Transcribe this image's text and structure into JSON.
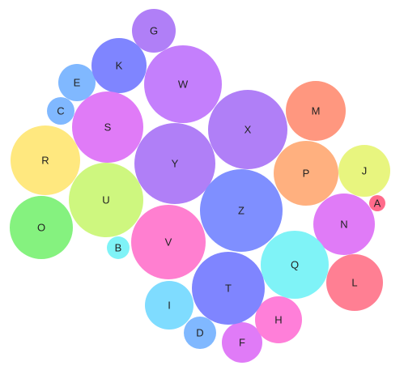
{
  "chart_data": {
    "type": "bubble",
    "title": "",
    "grid": false,
    "legend": "none",
    "bubbles": [
      {
        "label": "A",
        "value": 1,
        "color": "#ff6b8b"
      },
      {
        "label": "B",
        "value": 1,
        "color": "#7ff3f7"
      },
      {
        "label": "C",
        "value": 2,
        "color": "#80b8ff"
      },
      {
        "label": "D",
        "value": 3,
        "color": "#80b8ff"
      },
      {
        "label": "E",
        "value": 4,
        "color": "#80b8ff"
      },
      {
        "label": "F",
        "value": 4,
        "color": "#e07bf7"
      },
      {
        "label": "G",
        "value": 5,
        "color": "#b07ff7"
      },
      {
        "label": "H",
        "value": 6,
        "color": "#ff7fd9"
      },
      {
        "label": "I",
        "value": 7,
        "color": "#7fdcff"
      },
      {
        "label": "J",
        "value": 8,
        "color": "#e8f57f"
      },
      {
        "label": "K",
        "value": 9,
        "color": "#7f85ff"
      },
      {
        "label": "L",
        "value": 9,
        "color": "#ff7f93"
      },
      {
        "label": "M",
        "value": 10,
        "color": "#ff977f"
      },
      {
        "label": "N",
        "value": 11,
        "color": "#e07bf7"
      },
      {
        "label": "O",
        "value": 11,
        "color": "#85f27f"
      },
      {
        "label": "P",
        "value": 12,
        "color": "#ffb07f"
      },
      {
        "label": "Q",
        "value": 13,
        "color": "#7ff3f7"
      },
      {
        "label": "R",
        "value": 13,
        "color": "#ffe87f"
      },
      {
        "label": "S",
        "value": 14,
        "color": "#e07bf7"
      },
      {
        "label": "T",
        "value": 15,
        "color": "#7f85ff"
      },
      {
        "label": "U",
        "value": 16,
        "color": "#cef77f"
      },
      {
        "label": "V",
        "value": 16,
        "color": "#ff7fd0"
      },
      {
        "label": "W",
        "value": 17,
        "color": "#c47ffc"
      },
      {
        "label": "X",
        "value": 18,
        "color": "#b07ff7"
      },
      {
        "label": "Y",
        "value": 19,
        "color": "#b07ff7"
      },
      {
        "label": "Z",
        "value": 20,
        "color": "#7f8fff"
      }
    ]
  }
}
